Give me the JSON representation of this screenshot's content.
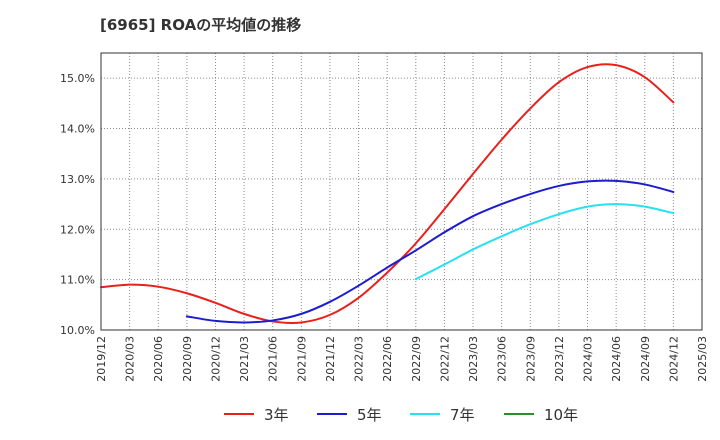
{
  "chart_data": {
    "type": "line",
    "title": "[6965]  ROAの平均値の推移",
    "xlabel": "",
    "ylabel": "",
    "x_ticks": [
      "2019/12",
      "2020/03",
      "2020/06",
      "2020/09",
      "2020/12",
      "2021/03",
      "2021/06",
      "2021/09",
      "2021/12",
      "2022/03",
      "2022/06",
      "2022/09",
      "2022/12",
      "2023/03",
      "2023/06",
      "2023/09",
      "2023/12",
      "2024/03",
      "2024/06",
      "2024/09",
      "2024/12",
      "2025/03"
    ],
    "y_ticks": [
      "10.0%",
      "11.0%",
      "12.0%",
      "13.0%",
      "14.0%",
      "15.0%"
    ],
    "ylim": [
      10.0,
      15.5
    ],
    "grid": true,
    "legend_position": "bottom",
    "series": [
      {
        "name": "3年",
        "color": "#e8201b",
        "x": [
          "2019/12",
          "2020/03",
          "2020/06",
          "2020/09",
          "2020/12",
          "2021/03",
          "2021/06",
          "2021/09",
          "2021/12",
          "2022/03",
          "2022/06",
          "2022/09",
          "2022/12",
          "2023/03",
          "2023/06",
          "2023/09",
          "2023/12",
          "2024/03",
          "2024/06",
          "2024/09",
          "2024/12"
        ],
        "values": [
          10.85,
          10.9,
          10.86,
          10.73,
          10.54,
          10.32,
          10.17,
          10.15,
          10.3,
          10.64,
          11.14,
          11.72,
          12.4,
          13.1,
          13.78,
          14.4,
          14.92,
          15.22,
          15.26,
          15.02,
          14.52
        ]
      },
      {
        "name": "5年",
        "color": "#1c1cd0",
        "x": [
          "2020/09",
          "2020/12",
          "2021/03",
          "2021/06",
          "2021/09",
          "2021/12",
          "2022/03",
          "2022/06",
          "2022/09",
          "2022/12",
          "2023/03",
          "2023/06",
          "2023/09",
          "2023/12",
          "2024/03",
          "2024/06",
          "2024/09",
          "2024/12"
        ],
        "values": [
          10.27,
          10.18,
          10.15,
          10.19,
          10.32,
          10.56,
          10.88,
          11.24,
          11.58,
          11.94,
          12.26,
          12.5,
          12.7,
          12.86,
          12.95,
          12.96,
          12.89,
          12.74
        ]
      },
      {
        "name": "7年",
        "color": "#28e0f0",
        "x": [
          "2022/09",
          "2022/12",
          "2023/03",
          "2023/06",
          "2023/09",
          "2023/12",
          "2024/03",
          "2024/06",
          "2024/09",
          "2024/12"
        ],
        "values": [
          11.01,
          11.3,
          11.6,
          11.86,
          12.1,
          12.3,
          12.45,
          12.5,
          12.45,
          12.32
        ]
      },
      {
        "name": "10年",
        "color": "#2a8f2a",
        "x": [],
        "values": []
      }
    ]
  }
}
